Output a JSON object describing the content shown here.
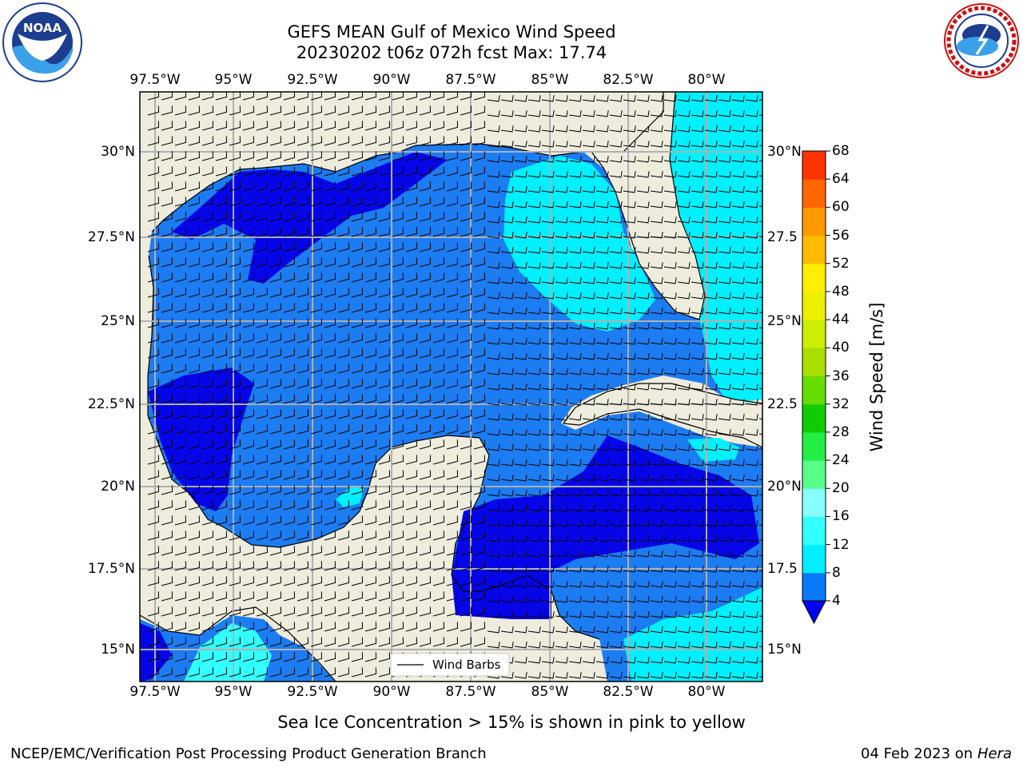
{
  "header": {
    "title_line1": "GEFS MEAN Gulf of Mexico Wind Speed",
    "title_line2": "20230202 t06z 072h fcst   Max: 17.74"
  },
  "logos": {
    "noaa": {
      "text": "NOAA",
      "ring_text": "NATIONAL OCEANIC AND ATMOSPHERIC ADMINISTRATION · U.S. DEPARTMENT OF COMMERCE"
    },
    "nws": {
      "ring_text": "NATIONAL WEATHER SERVICE"
    }
  },
  "map": {
    "lon_labels": [
      "97.5°W",
      "95°W",
      "92.5°W",
      "90°W",
      "87.5°W",
      "85°W",
      "82.5°W",
      "80°W"
    ],
    "lat_labels_left": [
      "30°N",
      "27.5°N",
      "25°N",
      "22.5°N",
      "20°N",
      "17.5°N",
      "15°N"
    ],
    "lat_labels_right": [
      "30°N",
      "27.5",
      "25°N",
      "22.5",
      "20°N",
      "17.5",
      "15°N"
    ],
    "legend_label": "Wind Barbs"
  },
  "colorbar": {
    "label": "Wind Speed [m/s]",
    "ticks": [
      "4",
      "8",
      "12",
      "16",
      "20",
      "24",
      "28",
      "32",
      "36",
      "40",
      "44",
      "48",
      "52",
      "56",
      "60",
      "64",
      "68"
    ],
    "colors": [
      "#0a78fa",
      "#00eeff",
      "#33ffff",
      "#88ffff",
      "#55ff88",
      "#22ee44",
      "#11cc00",
      "#66dd00",
      "#aadd00",
      "#ccee00",
      "#eeee00",
      "#ffee00",
      "#ffbb00",
      "#ff9900",
      "#ff6600",
      "#ff3300",
      "#ff0000"
    ],
    "extend_color": "#0000ee"
  },
  "footer": {
    "note": "Sea Ice Concentration > 15% is shown in pink to yellow",
    "credit": "NCEP/EMC/Verification Post Processing Product Generation Branch",
    "date": "04 Feb 2023 on",
    "host": "Hera"
  }
}
